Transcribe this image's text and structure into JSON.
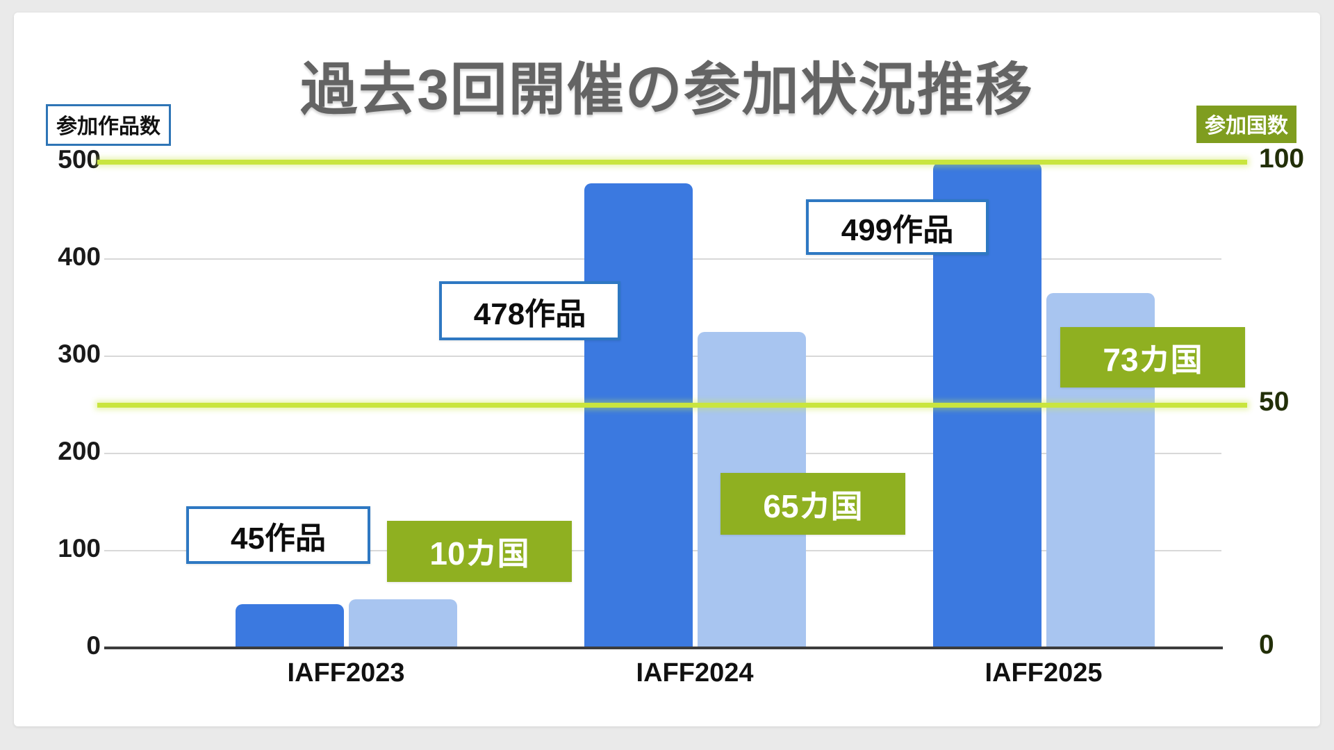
{
  "title": "過去3回開催の参加状況推移",
  "axis_badges": {
    "left": "参加作品数",
    "right": "参加国数"
  },
  "colors": {
    "works_bar": "#3b79e0",
    "countries_bar": "#a8c5f0",
    "green_accent": "#c9e53e",
    "green_box": "#8fb021",
    "green_badge": "#7f9d1f",
    "blue_border": "#2e78c2",
    "title_gray": "#646464"
  },
  "chart_data": {
    "type": "bar",
    "categories": [
      "IAFF2023",
      "IAFF2024",
      "IAFF2025"
    ],
    "series": [
      {
        "name": "参加作品数",
        "axis": "left",
        "color": "#3b79e0",
        "values": [
          45,
          478,
          499
        ]
      },
      {
        "name": "参加国数",
        "axis": "right",
        "color": "#a8c5f0",
        "values": [
          10,
          65,
          73
        ]
      }
    ],
    "left_axis": {
      "label": "参加作品数",
      "ticks": [
        0,
        100,
        200,
        300,
        400,
        500
      ],
      "range": [
        0,
        500
      ]
    },
    "right_axis": {
      "label": "参加国数",
      "ticks": [
        0,
        50,
        100
      ],
      "range": [
        0,
        100
      ]
    },
    "highlight_lines_right_axis": [
      100,
      50
    ],
    "grid": true,
    "legend_position": "top-corners",
    "annotations": [
      {
        "label": "45作品",
        "category": "IAFF2023",
        "series": "参加作品数",
        "type": "works"
      },
      {
        "label": "10カ国",
        "category": "IAFF2023",
        "series": "参加国数",
        "type": "countries"
      },
      {
        "label": "478作品",
        "category": "IAFF2024",
        "series": "参加作品数",
        "type": "works"
      },
      {
        "label": "65カ国",
        "category": "IAFF2024",
        "series": "参加国数",
        "type": "countries"
      },
      {
        "label": "499作品",
        "category": "IAFF2025",
        "series": "参加作品数",
        "type": "works"
      },
      {
        "label": "73カ国",
        "category": "IAFF2025",
        "series": "参加国数",
        "type": "countries"
      }
    ]
  }
}
